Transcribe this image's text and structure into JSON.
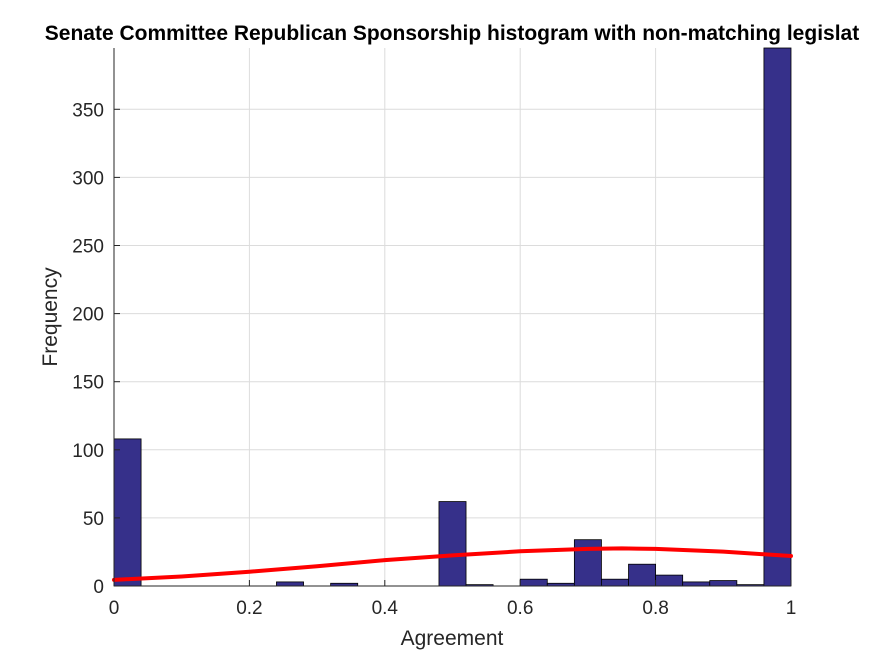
{
  "chart_data": {
    "type": "bar",
    "title": "Senate Committee Republican Sponsorship histogram with non-matching legislat",
    "xlabel": "Agreement",
    "ylabel": "Frequency",
    "xlim": [
      0,
      1
    ],
    "ylim": [
      0,
      395
    ],
    "xticks": [
      0,
      0.2,
      0.4,
      0.6,
      0.8,
      1
    ],
    "xtick_labels": [
      "0",
      "0.2",
      "0.4",
      "0.6",
      "0.8",
      "1"
    ],
    "yticks": [
      0,
      50,
      100,
      150,
      200,
      250,
      300,
      350
    ],
    "ytick_labels": [
      "0",
      "50",
      "100",
      "150",
      "200",
      "250",
      "300",
      "350"
    ],
    "grid": true,
    "bin_edges": [
      0,
      0.04,
      0.08,
      0.12,
      0.16,
      0.2,
      0.24,
      0.28,
      0.32,
      0.36,
      0.4,
      0.44,
      0.48,
      0.52,
      0.56,
      0.6,
      0.64,
      0.68,
      0.72,
      0.76,
      0.8,
      0.84,
      0.88,
      0.92,
      0.96,
      1.0
    ],
    "values": [
      108,
      0,
      0,
      0,
      0,
      0,
      3,
      0,
      2,
      0,
      0,
      0,
      62,
      1,
      0,
      5,
      2,
      34,
      5,
      16,
      8,
      3,
      4,
      1,
      395
    ],
    "bar_color": "#36308a",
    "fit_curve": {
      "color": "#ff0000",
      "x": [
        0,
        0.1,
        0.2,
        0.3,
        0.4,
        0.5,
        0.6,
        0.7,
        0.75,
        0.8,
        0.9,
        1.0
      ],
      "y": [
        4.5,
        7,
        10.5,
        14.5,
        19,
        22.5,
        25.5,
        27.3,
        27.6,
        27.3,
        25.2,
        22
      ]
    }
  }
}
